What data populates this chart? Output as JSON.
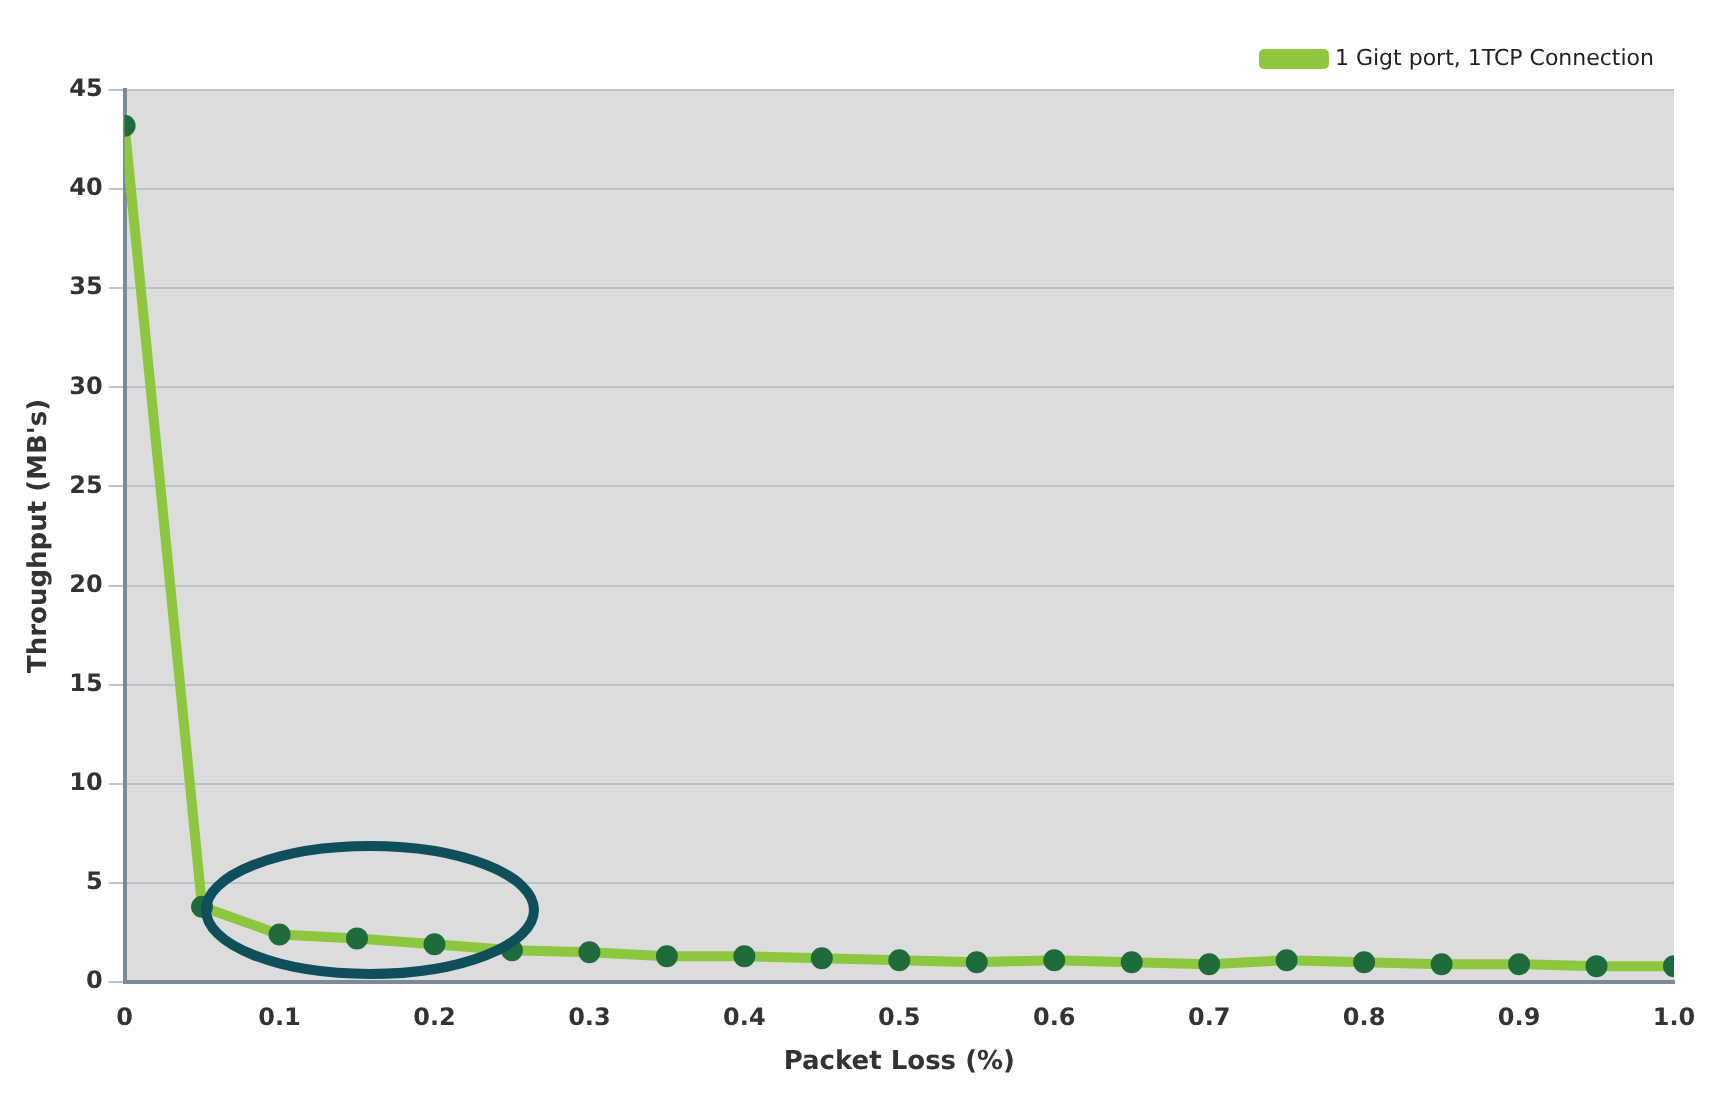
{
  "chart_data": {
    "type": "line",
    "xlabel": "Packet Loss (%)",
    "ylabel": "Throughput (MB's)",
    "x": [
      0,
      0.05,
      0.1,
      0.15,
      0.2,
      0.25,
      0.3,
      0.35,
      0.4,
      0.45,
      0.5,
      0.55,
      0.6,
      0.65,
      0.7,
      0.75,
      0.8,
      0.85,
      0.9,
      0.95,
      1.0
    ],
    "series": [
      {
        "name": "1 Gigt port, 1TCP Connection",
        "color": "#8dc63f",
        "values": [
          43.2,
          3.8,
          2.4,
          2.2,
          1.9,
          1.6,
          1.5,
          1.3,
          1.3,
          1.2,
          1.1,
          1.0,
          1.1,
          1.0,
          0.9,
          1.1,
          1.0,
          0.9,
          0.9,
          0.8,
          0.8
        ]
      }
    ],
    "xlim": [
      0,
      1.0
    ],
    "xticks": [
      0,
      0.1,
      0.2,
      0.3,
      0.4,
      0.5,
      0.6,
      0.7,
      0.8,
      0.9,
      {
        "value": 1.0,
        "label": "1.0"
      }
    ],
    "ylim": [
      0,
      45
    ],
    "yticks": [
      0,
      5,
      10,
      15,
      20,
      25,
      30,
      35,
      40,
      45
    ],
    "grid": "y",
    "legend": "top right",
    "marker": "circle",
    "line_style": "solid"
  }
}
